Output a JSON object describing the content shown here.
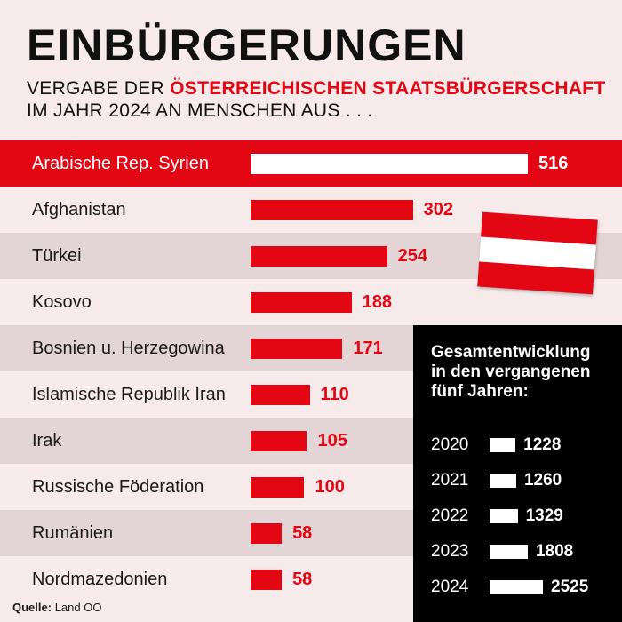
{
  "title": "EINBÜRGERUNGEN",
  "subtitle": {
    "line1_prefix": "VERGABE DER ",
    "line1_highlight": "ÖSTERREICHISCHEN STAATSBÜRGERSCHAFT",
    "line2": "IM JAHR 2024 AN MENSCHEN AUS . . ."
  },
  "colors": {
    "accent": "#e30613",
    "background": "#f6eaea",
    "stripe": "#e3d5d6",
    "panel": "#000000"
  },
  "chart_data": [
    {
      "type": "bar",
      "orientation": "horizontal",
      "categories": [
        "Arabische Rep. Syrien",
        "Afghanistan",
        "Türkei",
        "Kosovo",
        "Bosnien u. Herzegowina",
        "Islamische Republik Iran",
        "Irak",
        "Russische Föderation",
        "Rumänien",
        "Nordmazedonien"
      ],
      "values": [
        516,
        302,
        254,
        188,
        171,
        110,
        105,
        100,
        58,
        58
      ],
      "xlim": [
        0,
        516
      ],
      "grid": false
    },
    {
      "type": "bar",
      "orientation": "horizontal",
      "title": "Gesamtentwicklung in den vergangenen fünf Jahren:",
      "categories": [
        "2020",
        "2021",
        "2022",
        "2023",
        "2024"
      ],
      "values": [
        1228,
        1260,
        1329,
        1808,
        2525
      ],
      "xlim": [
        0,
        2525
      ],
      "grid": false
    }
  ],
  "flag": {
    "icon": "austria-flag-icon",
    "colors": [
      "#e30613",
      "#ffffff",
      "#e30613"
    ]
  },
  "source": {
    "label": "Quelle:",
    "text": "Land OÖ"
  }
}
